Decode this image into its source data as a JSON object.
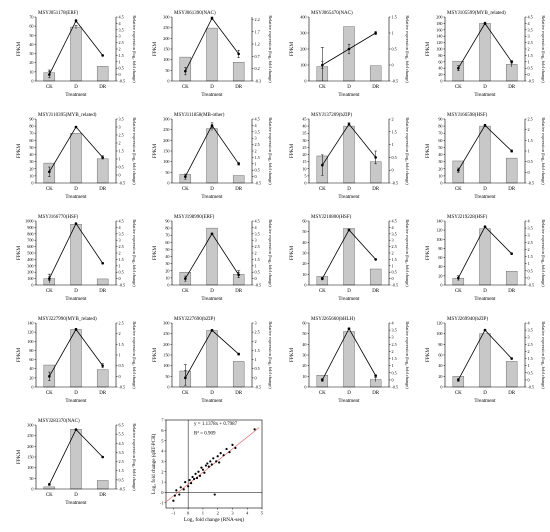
{
  "figure": {
    "panel_xlabel": "Treatment",
    "panel_ylabel_left": "FPKM",
    "panel_ylabel_right": "Relative expression (log₂ fold change)",
    "bar_color": "#c8c8c8",
    "line_color": "#000000"
  },
  "chart_data": [
    {
      "type": "bar",
      "title": "MSYJ051178(ERF)",
      "categories": [
        "CK",
        "D",
        "DR"
      ],
      "xlabel": "Treatment",
      "ylabel": "FPKM",
      "ylim": [
        0,
        70
      ],
      "yticks": [
        0,
        10,
        20,
        30,
        40,
        50,
        60,
        70
      ],
      "values": [
        9,
        59,
        16
      ],
      "errors": [
        3,
        2,
        0
      ],
      "y2label": "Relative expression (log₂ fold change)",
      "y2lim": [
        -0.5,
        4.5
      ],
      "y2ticks": [
        -0.5,
        0,
        0.5,
        1,
        1.5,
        2,
        2.5,
        3,
        3.5,
        4,
        4.5
      ],
      "line_values": [
        0,
        4.2,
        1.5
      ],
      "line_errors": [
        0.25,
        0.1,
        0.05
      ]
    },
    {
      "type": "bar",
      "title": "MSYJ061390(NAC)",
      "categories": [
        "CK",
        "D",
        "DR"
      ],
      "xlabel": "Treatment",
      "ylabel": "FPKM",
      "ylim": [
        0,
        300
      ],
      "yticks": [
        0,
        50,
        100,
        150,
        200,
        250,
        300
      ],
      "values": [
        112,
        248,
        88
      ],
      "errors": [
        0,
        0,
        0
      ],
      "y2label": "Relative expression (log₂ fold change)",
      "y2lim": [
        -0.3,
        2.3
      ],
      "y2ticks": [
        -0.3,
        0.2,
        0.7,
        1.2,
        1.7,
        2.2
      ],
      "line_values": [
        0.1,
        2.25,
        0.8
      ],
      "line_errors": [
        0.15,
        0.05,
        0.15
      ]
    },
    {
      "type": "bar",
      "title": "MSYJ065470(NAC)",
      "categories": [
        "CK",
        "D",
        "DR"
      ],
      "xlabel": "Treatment",
      "ylabel": "FPKM",
      "ylim": [
        0,
        400
      ],
      "yticks": [
        0,
        100,
        200,
        300,
        400
      ],
      "values": [
        90,
        340,
        95
      ],
      "errors": [
        120,
        0,
        0
      ],
      "y2label": "Relative expression (log₂ fold change)",
      "y2lim": [
        -0.5,
        1.5
      ],
      "y2ticks": [
        -0.5,
        0,
        0.5,
        1,
        1.5
      ],
      "line_values": [
        0,
        0.5,
        1.0
      ],
      "line_errors": [
        0.1,
        0.15,
        0.05
      ]
    },
    {
      "type": "bar",
      "title": "MSYJ105599(MYB_related)",
      "categories": [
        "CK",
        "D",
        "DR"
      ],
      "xlabel": "Treatment",
      "ylabel": "FPKM",
      "ylim": [
        0,
        200
      ],
      "yticks": [
        0,
        20,
        40,
        60,
        80,
        100,
        120,
        140,
        160,
        180,
        200
      ],
      "values": [
        62,
        180,
        52
      ],
      "errors": [
        0,
        0,
        8
      ],
      "y2label": "Relative expression (log₂ fold change)",
      "y2lim": [
        -0.5,
        4.5
      ],
      "y2ticks": [
        -0.5,
        0,
        0.5,
        1,
        1.5,
        2,
        2.5,
        3,
        3.5,
        4,
        4.5
      ],
      "line_values": [
        0.5,
        4.0,
        1.0
      ],
      "line_errors": [
        0.2,
        0.1,
        0.1
      ]
    },
    {
      "type": "bar",
      "title": "MSYJ110395(MYB_related)",
      "categories": [
        "CK",
        "D",
        "DR"
      ],
      "xlabel": "Treatment",
      "ylabel": "FPKM",
      "ylim": [
        0,
        90
      ],
      "yticks": [
        0,
        10,
        20,
        30,
        40,
        50,
        60,
        70,
        80,
        90
      ],
      "values": [
        28,
        70,
        34
      ],
      "errors": [
        0,
        0,
        0
      ],
      "y2label": "Relative expression (log₂ fold change)",
      "y2lim": [
        -0.5,
        3.5
      ],
      "y2ticks": [
        -0.5,
        0,
        0.5,
        1,
        1.5,
        2,
        2.5,
        3,
        3.5
      ],
      "line_values": [
        0.2,
        3.0,
        1.1
      ],
      "line_errors": [
        0.3,
        0.05,
        0.1
      ]
    },
    {
      "type": "bar",
      "title": "MSYJ111858(MB-other)",
      "categories": [
        "CK",
        "D",
        "DR"
      ],
      "xlabel": "Treatment",
      "ylabel": "FPKM",
      "ylim": [
        0,
        300
      ],
      "yticks": [
        0,
        50,
        100,
        150,
        200,
        250,
        300
      ],
      "values": [
        40,
        255,
        35
      ],
      "errors": [
        0,
        10,
        0
      ],
      "y2label": "Relative expression (log₂ fold change)",
      "y2lim": [
        -0.5,
        4.5
      ],
      "y2ticks": [
        -0.5,
        0,
        0.5,
        1,
        1.5,
        2,
        2.5,
        3,
        3.5,
        4,
        4.5
      ],
      "line_values": [
        0,
        4.0,
        1.0
      ],
      "line_errors": [
        0.2,
        0.2,
        0.1
      ]
    },
    {
      "type": "bar",
      "title": "MSYJ137209(bZIP)",
      "categories": [
        "CK",
        "D",
        "DR"
      ],
      "xlabel": "Treatment",
      "ylabel": "FPKM",
      "ylim": [
        0,
        45
      ],
      "yticks": [
        0,
        5,
        10,
        15,
        20,
        25,
        30,
        35,
        40,
        45
      ],
      "values": [
        19,
        40,
        15
      ],
      "errors": [
        0,
        0,
        0
      ],
      "y2label": "Relative expression (log₂ fold change)",
      "y2lim": [
        -0.5,
        2
      ],
      "y2ticks": [
        -0.5,
        0,
        0.5,
        1,
        1.5,
        2
      ],
      "line_values": [
        0.2,
        1.8,
        0.5
      ],
      "line_errors": [
        0.4,
        0.05,
        0.25
      ]
    },
    {
      "type": "bar",
      "title": "MSYJ166598(HSF)",
      "categories": [
        "CK",
        "D",
        "DR"
      ],
      "xlabel": "Treatment",
      "ylabel": "FPKM",
      "ylim": [
        0,
        90
      ],
      "yticks": [
        0,
        10,
        20,
        30,
        40,
        50,
        60,
        70,
        80,
        90
      ],
      "values": [
        31,
        80,
        35
      ],
      "errors": [
        0,
        0,
        0
      ],
      "y2label": "Relative expression (log₂ fold change)",
      "y2lim": [
        -0.5,
        2.5
      ],
      "y2ticks": [
        -0.5,
        0,
        0.5,
        1,
        1.5,
        2,
        2.5
      ],
      "line_values": [
        0.1,
        2.2,
        1.0
      ],
      "line_errors": [
        0.1,
        0.05,
        0.05
      ]
    },
    {
      "type": "bar",
      "title": "MSYJ166770(HSF)",
      "categories": [
        "CK",
        "D",
        "DR"
      ],
      "xlabel": "Treatment",
      "ylabel": "FPKM",
      "ylim": [
        0,
        1000
      ],
      "yticks": [
        0,
        100,
        200,
        300,
        400,
        500,
        600,
        700,
        800,
        900,
        1000
      ],
      "values": [
        100,
        950,
        95
      ],
      "errors": [
        70,
        0,
        0
      ],
      "y2label": "Relative expression (log₂ fold change)",
      "y2lim": [
        -0.5,
        4.5
      ],
      "y2ticks": [
        -0.5,
        0,
        0.5,
        1,
        1.5,
        2,
        2.5,
        3,
        3.5,
        4,
        4.5
      ],
      "line_values": [
        0,
        4.3,
        1.2
      ],
      "line_errors": [
        0.15,
        0.05,
        0.05
      ]
    },
    {
      "type": "bar",
      "title": "MSYJ198990(ERF)",
      "categories": [
        "CK",
        "D",
        "DR"
      ],
      "xlabel": "Treatment",
      "ylabel": "FPKM",
      "ylim": [
        0,
        90
      ],
      "yticks": [
        0,
        10,
        20,
        30,
        40,
        50,
        60,
        70,
        80,
        90
      ],
      "values": [
        18,
        80,
        15
      ],
      "errors": [
        0,
        0,
        5
      ],
      "y2label": "Relative expression (log₂ fold change)",
      "y2lim": [
        -0.5,
        4.5
      ],
      "y2ticks": [
        -0.5,
        0,
        0.5,
        1,
        1.5,
        2,
        2.5,
        3,
        3.5,
        4,
        4.5
      ],
      "line_values": [
        0,
        3.5,
        0.3
      ],
      "line_errors": [
        0.2,
        0.05,
        0.2
      ]
    },
    {
      "type": "bar",
      "title": "MSYJ210800(HSF)",
      "categories": [
        "CK",
        "D",
        "DR"
      ],
      "xlabel": "Treatment",
      "ylabel": "FPKM",
      "ylim": [
        0,
        60
      ],
      "yticks": [
        0,
        10,
        20,
        30,
        40,
        50,
        60
      ],
      "values": [
        8,
        53,
        15
      ],
      "errors": [
        0,
        0,
        0
      ],
      "y2label": "Relative expression (log₂ fold change)",
      "y2lim": [
        -0.5,
        4.5
      ],
      "y2ticks": [
        -0.5,
        0,
        0.5,
        1,
        1.5,
        2,
        2.5,
        3,
        3.5,
        4,
        4.5
      ],
      "line_values": [
        0,
        3.8,
        1.5
      ],
      "line_errors": [
        0.1,
        0.05,
        0.05
      ]
    },
    {
      "type": "bar",
      "title": "MSYJ219228(HSF)",
      "categories": [
        "CK",
        "D",
        "DR"
      ],
      "xlabel": "Treatment",
      "ylabel": "FPKM",
      "ylim": [
        0,
        140
      ],
      "yticks": [
        0,
        20,
        40,
        60,
        80,
        100,
        120,
        140
      ],
      "values": [
        15,
        123,
        30
      ],
      "errors": [
        5,
        0,
        0
      ],
      "y2label": "Relative expression (log₂ fold change)",
      "y2lim": [
        -0.5,
        4
      ],
      "y2ticks": [
        -0.5,
        0,
        0.5,
        1,
        1.5,
        2,
        2.5,
        3,
        3.5,
        4
      ],
      "line_values": [
        0,
        3.6,
        1.7
      ],
      "line_errors": [
        0.15,
        0.05,
        0.05
      ]
    },
    {
      "type": "bar",
      "title": "MSYJ227990(MYB_related)",
      "categories": [
        "CK",
        "D",
        "DR"
      ],
      "xlabel": "Treatment",
      "ylabel": "FPKM",
      "ylim": [
        0,
        140
      ],
      "yticks": [
        0,
        20,
        40,
        60,
        80,
        100,
        120,
        140
      ],
      "values": [
        48,
        126,
        38
      ],
      "errors": [
        0,
        0,
        0
      ],
      "y2label": "Relative expression (log₂ fold change)",
      "y2lim": [
        -0.5,
        2.5
      ],
      "y2ticks": [
        -0.5,
        0,
        0.5,
        1,
        1.5,
        2,
        2.5
      ],
      "line_values": [
        0,
        2.2,
        0.5
      ],
      "line_errors": [
        0.2,
        0.05,
        0.1
      ]
    },
    {
      "type": "bar",
      "title": "MSYJ227690(bZIP)",
      "categories": [
        "CK",
        "D",
        "DR"
      ],
      "xlabel": "Treatment",
      "ylabel": "FPKM",
      "ylim": [
        0,
        300
      ],
      "yticks": [
        0,
        50,
        100,
        150,
        200,
        250,
        300
      ],
      "values": [
        75,
        265,
        120
      ],
      "errors": [
        30,
        0,
        0
      ],
      "y2label": "Relative expression (log₂ fold change)",
      "y2lim": [
        -0.5,
        3
      ],
      "y2ticks": [
        -0.5,
        0,
        0.5,
        1,
        1.5,
        2,
        2.5,
        3
      ],
      "line_values": [
        0,
        2.6,
        1.3
      ],
      "line_errors": [
        0.4,
        0.05,
        0.05
      ]
    },
    {
      "type": "bar",
      "title": "MSYJ265660(bHLH)",
      "categories": [
        "CK",
        "D",
        "DR"
      ],
      "xlabel": "Treatment",
      "ylabel": "FPKM",
      "ylim": [
        0,
        60
      ],
      "yticks": [
        0,
        10,
        20,
        30,
        40,
        50,
        60
      ],
      "values": [
        11,
        52,
        7
      ],
      "errors": [
        0,
        0,
        2
      ],
      "y2label": "Relative expression (log₂ fold change)",
      "y2lim": [
        -0.5,
        4
      ],
      "y2ticks": [
        -0.5,
        0,
        0.5,
        1,
        1.5,
        2,
        2.5,
        3,
        3.5,
        4
      ],
      "line_values": [
        0,
        3.6,
        0.3
      ],
      "line_errors": [
        0.1,
        0.05,
        0.05
      ]
    },
    {
      "type": "bar",
      "title": "MSYJ269940(bZIP)",
      "categories": [
        "CK",
        "D",
        "DR"
      ],
      "xlabel": "Treatment",
      "ylabel": "FPKM",
      "ylim": [
        0,
        120
      ],
      "yticks": [
        0,
        20,
        40,
        60,
        80,
        100,
        120
      ],
      "values": [
        20,
        100,
        48
      ],
      "errors": [
        0,
        0,
        0
      ],
      "y2label": "Relative expression (log₂ fold change)",
      "y2lim": [
        -0.5,
        4
      ],
      "y2ticks": [
        -0.5,
        0,
        0.5,
        1,
        1.5,
        2,
        2.5,
        3,
        3.5,
        4
      ],
      "line_values": [
        0,
        3.5,
        1.5
      ],
      "line_errors": [
        0.1,
        0.05,
        0.05
      ]
    },
    {
      "type": "bar",
      "title": "MSYJ283370(NAC)",
      "categories": [
        "CK",
        "D",
        "DR"
      ],
      "xlabel": "Treatment",
      "ylabel": "FPKM",
      "ylim": [
        0,
        300
      ],
      "yticks": [
        0,
        50,
        100,
        150,
        200,
        250,
        300
      ],
      "values": [
        10,
        280,
        40
      ],
      "errors": [
        0,
        0,
        0
      ],
      "y2label": "Relative expression (log₂ fold change)",
      "y2lim": [
        -0.5,
        6.5
      ],
      "y2ticks": [
        -0.5,
        0.5,
        1.5,
        2.5,
        3.5,
        4.5,
        5.5,
        6.5
      ],
      "line_values": [
        0,
        6.0,
        3.0
      ],
      "line_errors": [
        0.1,
        0.05,
        0.05
      ]
    },
    {
      "type": "scatter",
      "title": "",
      "xlabel": "Log₂ fold change (RNA-seq)",
      "ylabel": "Log₂ fold change (qRT-PCR)",
      "xlim": [
        -1.5,
        5
      ],
      "ylim": [
        -1.5,
        7
      ],
      "xticks": [
        -1,
        0,
        1,
        2,
        3,
        4,
        5
      ],
      "yticks": [
        -1,
        0,
        1,
        2,
        3,
        4,
        5,
        6,
        7
      ],
      "equation": "y = 1.1378x + 0.7987",
      "r2": "R² = 0.909",
      "fit": {
        "slope": 1.1378,
        "intercept": 0.7987
      },
      "x": [
        -1.0,
        -0.9,
        -0.8,
        -0.6,
        -0.5,
        -0.3,
        -0.2,
        0.0,
        0.1,
        0.2,
        0.3,
        0.4,
        0.5,
        0.6,
        0.7,
        0.8,
        0.9,
        1.0,
        1.1,
        1.2,
        1.3,
        1.4,
        1.5,
        1.6,
        1.7,
        1.8,
        1.9,
        2.0,
        2.1,
        2.2,
        2.4,
        2.6,
        2.8,
        3.0,
        3.2,
        4.5
      ],
      "y": [
        -0.8,
        -0.3,
        0.2,
        -0.2,
        0.5,
        0.3,
        1.0,
        0.6,
        1.2,
        0.9,
        1.5,
        1.3,
        1.8,
        1.4,
        2.0,
        1.6,
        2.4,
        2.2,
        1.9,
        2.6,
        2.8,
        2.5,
        3.0,
        2.7,
        3.3,
        -0.2,
        3.0,
        3.5,
        2.9,
        3.8,
        3.6,
        4.2,
        3.9,
        4.6,
        4.3,
        6.1
      ]
    }
  ]
}
